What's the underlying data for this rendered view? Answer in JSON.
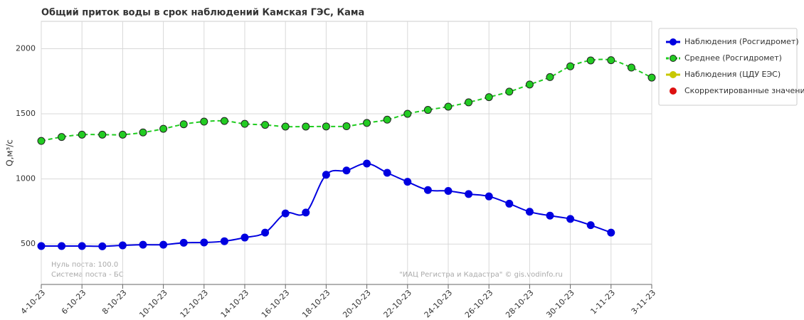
{
  "chart_data": {
    "type": "line",
    "title": "Общий приток воды в срок наблюдений Камская ГЭС,  Кама",
    "y_label": "Q,м³/с",
    "notes": [
      "Нуль поста: 100.0",
      "Система поста - БС"
    ],
    "credit": "\"ИАЦ Регистра и Кадастра\" © gis.vodinfo.ru",
    "categories": [
      "4-10-23",
      null,
      "6-10-23",
      null,
      "8-10-23",
      null,
      "10-10-23",
      null,
      "12-10-23",
      null,
      "14-10-23",
      null,
      "16-10-23",
      null,
      "18-10-23",
      null,
      "20-10-23",
      null,
      "22-10-23",
      null,
      "24-10-23",
      null,
      "26-10-23",
      null,
      "28-10-23",
      null,
      "30-10-23",
      null,
      "1-11-23",
      null,
      "3-11-23"
    ],
    "ylim": [
      190,
      2210
    ],
    "yticks": [
      500,
      1000,
      1500,
      2000
    ],
    "grid": true,
    "series": [
      {
        "name": "Наблюдения (Росгидромет)",
        "color": "#0000e0",
        "dash": false,
        "values": [
          485,
          485,
          485,
          483,
          490,
          495,
          495,
          510,
          512,
          522,
          550,
          588,
          735,
          742,
          1032,
          1065,
          1118,
          1047,
          978,
          915,
          908,
          884,
          866,
          810,
          748,
          718,
          693,
          645,
          588,
          null,
          null
        ]
      },
      {
        "name": "Среднее (Росгидромет)",
        "color": "#22cc22",
        "dash": true,
        "values": [
          1292,
          1322,
          1340,
          1340,
          1340,
          1357,
          1385,
          1420,
          1440,
          1445,
          1423,
          1415,
          1402,
          1402,
          1403,
          1405,
          1430,
          1455,
          1500,
          1530,
          1555,
          1588,
          1628,
          1670,
          1725,
          1782,
          1865,
          1910,
          1912,
          1855,
          1778
        ]
      },
      {
        "name": "Наблюдения (ЦДУ ЕЭС)",
        "color": "#c8c800",
        "dash": false,
        "values": [
          null,
          null,
          null,
          null,
          null,
          null,
          null,
          null,
          null,
          null,
          null,
          null,
          null,
          null,
          null,
          null,
          null,
          null,
          null,
          null,
          null,
          null,
          null,
          null,
          null,
          null,
          null,
          null,
          null,
          null,
          null
        ]
      },
      {
        "name": "Скорректированные значения",
        "color": "#dd1111",
        "dash": false,
        "point_only": true,
        "values": [
          null,
          null,
          null,
          null,
          null,
          null,
          null,
          null,
          null,
          null,
          null,
          null,
          null,
          null,
          null,
          null,
          null,
          null,
          null,
          null,
          null,
          null,
          null,
          null,
          null,
          null,
          null,
          null,
          null,
          null,
          null
        ]
      }
    ]
  }
}
